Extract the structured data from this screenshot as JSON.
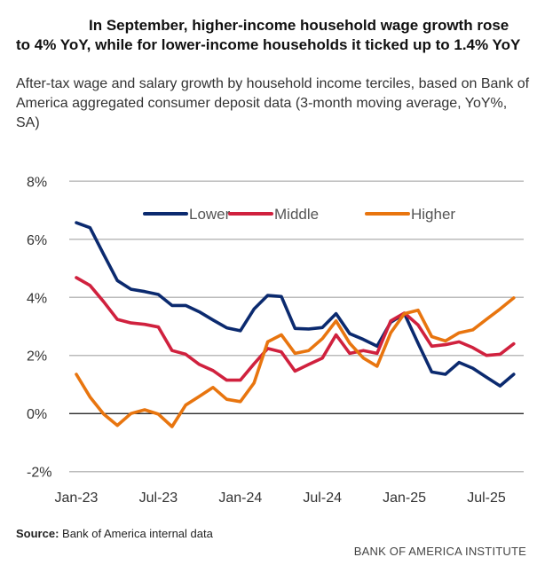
{
  "chart_data": {
    "type": "line",
    "title": "In September, higher-income household wage growth rose to 4% YoY, while for lower-income households it ticked up to 1.4% YoY",
    "subtitle": "After-tax wage and salary growth by household income terciles, based on Bank of America aggregated consumer deposit data (3-month moving average, YoY%, SA)",
    "xlabel": "",
    "ylabel": "",
    "ylim": [
      -2,
      8
    ],
    "yticks": [
      8,
      6,
      4,
      2,
      0,
      -2
    ],
    "ytick_labels": [
      "8%",
      "6%",
      "4%",
      "2%",
      "0%",
      "-2%"
    ],
    "xtick_labels": [
      {
        "label": "Jan-23",
        "index": 0
      },
      {
        "label": "Jul-23",
        "index": 6
      },
      {
        "label": "Jan-24",
        "index": 12
      },
      {
        "label": "Jul-24",
        "index": 18
      },
      {
        "label": "Jan-25",
        "index": 24
      },
      {
        "label": "Jul-25",
        "index": 30
      }
    ],
    "x": [
      "Jan-23",
      "Feb-23",
      "Mar-23",
      "Apr-23",
      "May-23",
      "Jun-23",
      "Jul-23",
      "Aug-23",
      "Sep-23",
      "Oct-23",
      "Nov-23",
      "Dec-23",
      "Jan-24",
      "Feb-24",
      "Mar-24",
      "Apr-24",
      "May-24",
      "Jun-24",
      "Jul-24",
      "Aug-24",
      "Sep-24",
      "Oct-24",
      "Nov-24",
      "Dec-24",
      "Jan-25",
      "Feb-25",
      "Mar-25",
      "Apr-25",
      "May-25",
      "Jun-25",
      "Jul-25",
      "Aug-25",
      "Sep-25"
    ],
    "grid": true,
    "legend_position": "top-center",
    "series": [
      {
        "name": "Lower",
        "color": "#0b2a6f",
        "values": [
          6.57,
          6.4,
          5.48,
          4.58,
          4.28,
          4.2,
          4.1,
          3.72,
          3.72,
          3.5,
          3.22,
          2.95,
          2.85,
          3.6,
          4.07,
          4.03,
          2.93,
          2.91,
          2.96,
          3.44,
          2.75,
          2.55,
          2.32,
          3.14,
          3.44,
          2.42,
          1.43,
          1.35,
          1.76,
          1.56,
          1.25,
          0.95,
          1.35
        ]
      },
      {
        "name": "Middle",
        "color": "#d0213e",
        "values": [
          4.68,
          4.41,
          3.85,
          3.24,
          3.12,
          3.07,
          2.98,
          2.17,
          2.04,
          1.69,
          1.48,
          1.15,
          1.15,
          1.71,
          2.24,
          2.12,
          1.46,
          1.69,
          1.91,
          2.71,
          2.07,
          2.17,
          2.07,
          3.19,
          3.46,
          3.05,
          2.32,
          2.37,
          2.47,
          2.27,
          2.0,
          2.04,
          2.4
        ]
      },
      {
        "name": "Higher",
        "color": "#e8750f",
        "values": [
          1.35,
          0.57,
          -0.02,
          -0.41,
          0.0,
          0.13,
          -0.02,
          -0.45,
          0.29,
          0.59,
          0.9,
          0.49,
          0.41,
          1.05,
          2.47,
          2.71,
          2.07,
          2.17,
          2.58,
          3.19,
          2.42,
          1.91,
          1.63,
          2.78,
          3.44,
          3.56,
          2.65,
          2.5,
          2.78,
          2.88,
          3.24,
          3.6,
          3.98
        ]
      }
    ]
  },
  "source_label": "Source:",
  "source_text": " Bank of America internal data",
  "brand": "BANK OF AMERICA INSTITUTE"
}
